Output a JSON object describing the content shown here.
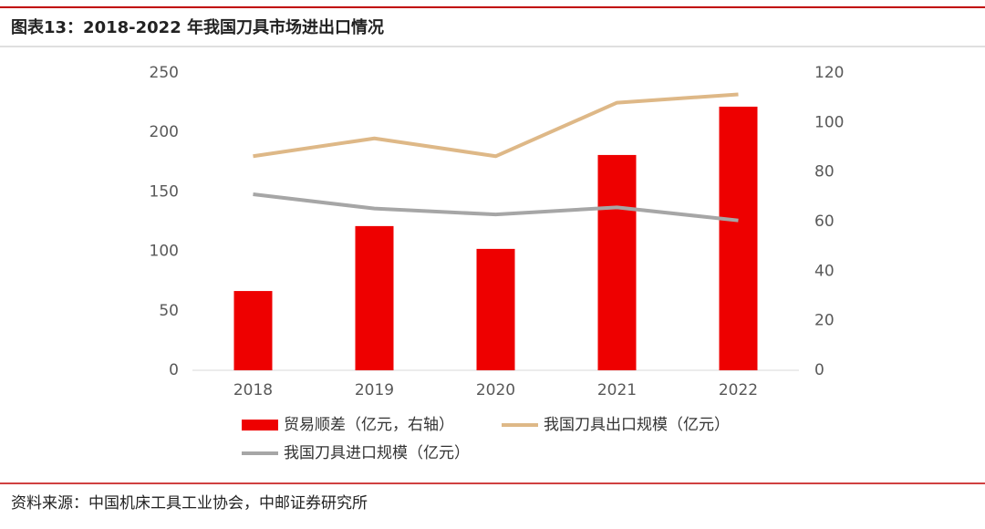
{
  "chart_data": {
    "type": "bar",
    "title": "图表13：2018-2022 年我国刀具市场进出口情况",
    "source": "资料来源：中国机床工具工业协会，中邮证券研究所",
    "categories": [
      "2018",
      "2019",
      "2020",
      "2021",
      "2022"
    ],
    "series": [
      {
        "name": "贸易顺差（亿元，右轴）",
        "type": "bar",
        "axis": "y2",
        "color": "#ee0000",
        "values": [
          32,
          58.2,
          49,
          86.9,
          106.4
        ]
      },
      {
        "name": "我国刀具出口规模（亿元）",
        "type": "line",
        "axis": "y",
        "color": "#deb887",
        "values": [
          180,
          195,
          180,
          225,
          232
        ]
      },
      {
        "name": "我国刀具进口规模（亿元）",
        "type": "line",
        "axis": "y",
        "color": "#a6a6a6",
        "values": [
          148,
          136,
          131,
          137,
          126
        ]
      }
    ],
    "ylim": [
      0,
      250
    ],
    "yticks": [
      0,
      50,
      100,
      150,
      200,
      250
    ],
    "y2lim": [
      0,
      120
    ],
    "y2ticks": [
      0,
      20,
      40,
      60,
      80,
      100,
      120
    ],
    "grid": false
  }
}
